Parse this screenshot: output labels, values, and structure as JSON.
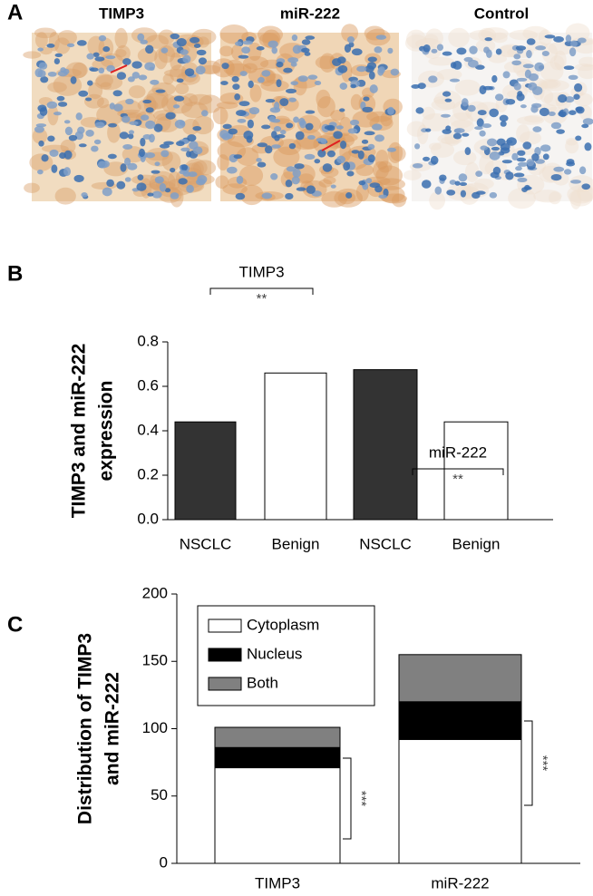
{
  "figure": {
    "panel_labels": [
      "A",
      "B",
      "C"
    ],
    "image_titles": [
      "TIMP3",
      "miR-222",
      "Control"
    ]
  },
  "chart_data": [
    {
      "type": "bar",
      "ylabel": [
        "TIMP3 and miR-222",
        "expression"
      ],
      "categories": [
        "NSCLC",
        "Benign",
        "NSCLC",
        "Benign"
      ],
      "values": [
        0.44,
        0.66,
        0.675,
        0.44
      ],
      "colors": [
        "#333333",
        "#ffffff",
        "#333333",
        "#ffffff"
      ],
      "ylim": [
        0,
        0.8
      ],
      "yticks": [
        {
          "value": 0,
          "label": "0.0"
        },
        0.2,
        0.4,
        0.6,
        0.8
      ],
      "annotations": [
        {
          "text": "TIMP3"
        },
        {
          "text": "**"
        },
        {
          "text": "miR-222"
        },
        {
          "text": "**"
        }
      ]
    },
    {
      "type": "stacked_bar",
      "ylabel": [
        "Distribution of TIMP3",
        "and miR-222"
      ],
      "categories": [
        "TIMP3",
        "miR-222"
      ],
      "series": [
        {
          "name": "Cytoplasm",
          "color": "#ffffff",
          "values": [
            71,
            92
          ]
        },
        {
          "name": "Nucleus",
          "color": "#000000",
          "values": [
            15,
            28
          ]
        },
        {
          "name": "Both",
          "color": "#808080",
          "values": [
            15,
            35
          ]
        }
      ],
      "ylim": [
        0,
        200
      ],
      "yticks": [
        0,
        50,
        100,
        150,
        200
      ],
      "legend": "upper left",
      "annotations": [
        {
          "text": "***"
        },
        {
          "text": "***"
        }
      ]
    }
  ]
}
